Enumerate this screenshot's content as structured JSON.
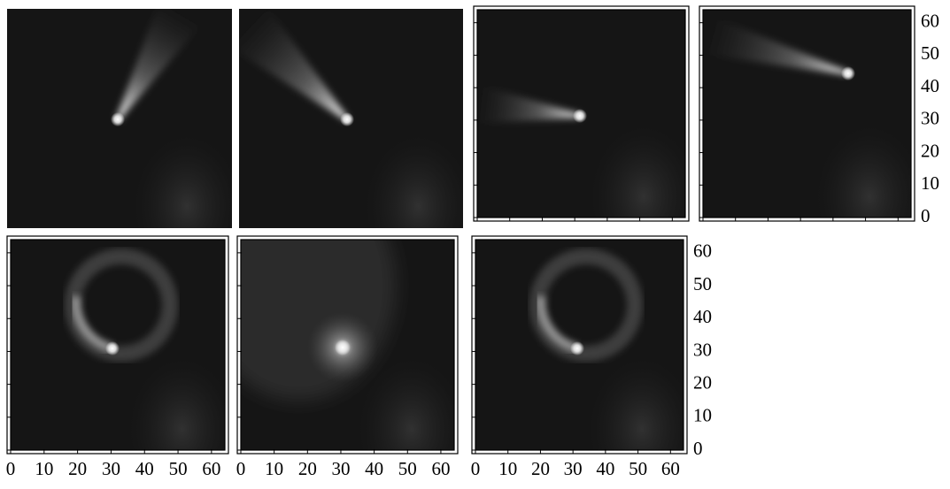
{
  "chart_data": [
    {
      "type": "image",
      "frame": false
    },
    {
      "type": "image",
      "frame": false
    },
    {
      "type": "image",
      "frame": true,
      "xlim": [
        0,
        64
      ],
      "ylim": [
        0,
        64
      ],
      "xticks": [
        0,
        10,
        20,
        30,
        40,
        50,
        60
      ],
      "yticks": [
        0,
        10,
        20,
        30,
        40,
        50,
        60
      ],
      "x_tick_labels": false,
      "y_tick_labels": false
    },
    {
      "type": "image",
      "frame": true,
      "xlim": [
        0,
        64
      ],
      "ylim": [
        0,
        64
      ],
      "xticks": [
        0,
        10,
        20,
        30,
        40,
        50,
        60
      ],
      "yticks": [
        0,
        10,
        20,
        30,
        40,
        50,
        60
      ],
      "x_tick_labels": false,
      "y_tick_labels": true
    },
    {
      "type": "image",
      "frame": true,
      "xlim": [
        0,
        64
      ],
      "ylim": [
        0,
        64
      ],
      "xticks": [
        0,
        10,
        20,
        30,
        40,
        50,
        60
      ],
      "yticks": [
        0,
        10,
        20,
        30,
        40,
        50,
        60
      ],
      "x_tick_labels": true,
      "y_tick_labels": false
    },
    {
      "type": "image",
      "frame": true,
      "xlim": [
        0,
        64
      ],
      "ylim": [
        0,
        64
      ],
      "xticks": [
        0,
        10,
        20,
        30,
        40,
        50,
        60
      ],
      "yticks": [
        0,
        10,
        20,
        30,
        40,
        50,
        60
      ],
      "x_tick_labels": true,
      "y_tick_labels": false
    },
    {
      "type": "image",
      "frame": true,
      "xlim": [
        0,
        64
      ],
      "ylim": [
        0,
        64
      ],
      "xticks": [
        0,
        10,
        20,
        30,
        40,
        50,
        60
      ],
      "yticks": [
        0,
        10,
        20,
        30,
        40,
        50,
        60
      ],
      "x_tick_labels": true,
      "y_tick_labels": true
    }
  ]
}
